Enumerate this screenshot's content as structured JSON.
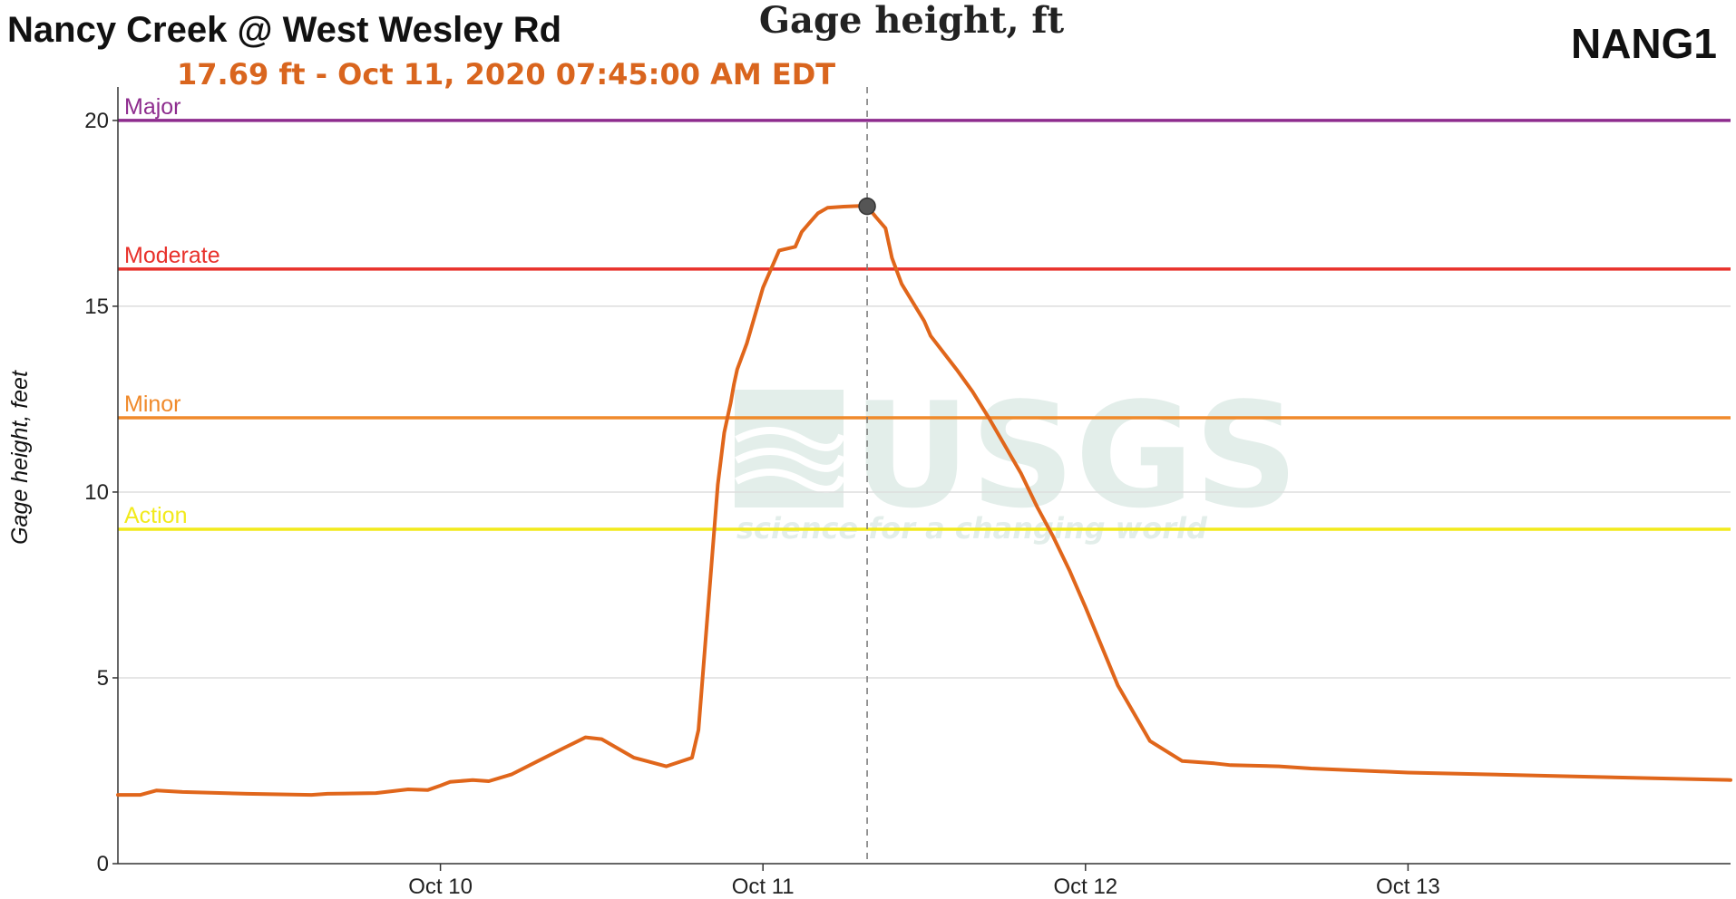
{
  "header": {
    "site_name": "Nancy Creek @ West Wesley Rd",
    "chart_title": "Gage height, ft",
    "site_id": "NANG1",
    "readout": "17.69 ft - Oct 11, 2020 07:45:00 AM EDT"
  },
  "watermark": {
    "logo": "USGS",
    "tagline": "science for a changing world"
  },
  "colors": {
    "series": "#e0661b",
    "readout": "#d9651e",
    "major": "#8e2c8e",
    "moderate": "#e8312b",
    "minor": "#f08a2b",
    "action": "#f2ea1c",
    "grid": "#dddddd",
    "axis": "#333333",
    "watermark": "#e3eeea"
  },
  "chart_data": {
    "type": "line",
    "title": "Gage height, ft",
    "ylabel": "Gage height, feet",
    "xlabel": "",
    "ylim": [
      0,
      20.9
    ],
    "xlim": [
      -1,
      4
    ],
    "x_unit": "days from Oct 10, 2020 00:00 EDT",
    "y_ticks": [
      0,
      5,
      10,
      15,
      20
    ],
    "x_ticks": [
      {
        "value": 0,
        "label": "Oct 10"
      },
      {
        "value": 1,
        "label": "Oct 11"
      },
      {
        "value": 2,
        "label": "Oct 12"
      },
      {
        "value": 3,
        "label": "Oct 13"
      }
    ],
    "grid": true,
    "thresholds": [
      {
        "name": "Major",
        "value": 20.0
      },
      {
        "name": "Moderate",
        "value": 16.0
      },
      {
        "name": "Minor",
        "value": 12.0
      },
      {
        "name": "Action",
        "value": 9.0
      }
    ],
    "marker": {
      "x": 1.323,
      "y": 17.69
    },
    "series": [
      {
        "x": [
          -1.0,
          -0.93,
          -0.88,
          -0.8,
          -0.6,
          -0.4,
          -0.35,
          -0.2,
          -0.1,
          -0.04,
          0.0,
          0.03,
          0.1,
          0.15,
          0.22,
          0.3,
          0.38,
          0.45,
          0.5,
          0.55,
          0.6,
          0.7,
          0.78,
          0.8,
          0.82,
          0.84,
          0.86,
          0.88,
          0.9,
          0.91,
          0.92,
          0.95,
          1.0,
          1.05,
          1.1,
          1.12,
          1.15,
          1.17,
          1.2,
          1.25,
          1.3,
          1.323,
          1.35,
          1.38,
          1.4,
          1.43,
          1.5,
          1.52,
          1.6,
          1.65,
          1.7,
          1.8,
          1.85,
          1.9,
          1.95,
          2.0,
          2.1,
          2.2,
          2.3,
          2.4,
          2.45,
          2.6,
          2.7,
          3.0,
          3.5,
          4.0
        ],
        "y": [
          1.85,
          1.85,
          1.97,
          1.93,
          1.88,
          1.85,
          1.88,
          1.9,
          2.0,
          1.98,
          2.1,
          2.2,
          2.25,
          2.22,
          2.4,
          2.75,
          3.1,
          3.4,
          3.35,
          3.1,
          2.85,
          2.62,
          2.85,
          3.6,
          5.8,
          8.0,
          10.2,
          11.6,
          12.4,
          12.9,
          13.3,
          14.0,
          15.5,
          16.5,
          16.6,
          17.0,
          17.3,
          17.5,
          17.65,
          17.68,
          17.7,
          17.69,
          17.4,
          17.1,
          16.3,
          15.6,
          14.6,
          14.2,
          13.3,
          12.7,
          12.0,
          10.5,
          9.6,
          8.8,
          7.9,
          6.9,
          4.8,
          3.3,
          2.76,
          2.7,
          2.65,
          2.62,
          2.56,
          2.45,
          2.35,
          2.25
        ]
      }
    ]
  }
}
